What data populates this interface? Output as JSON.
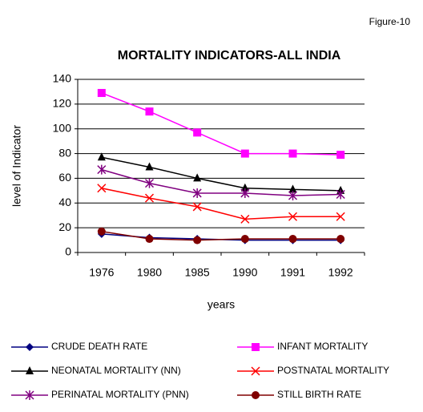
{
  "chart_data": {
    "type": "line",
    "figure_label": "Figure-10",
    "title": "MORTALITY INDICATORS-ALL INDIA",
    "x_label": "years",
    "y_label": "level of Indicator",
    "categories": [
      "1976",
      "1980",
      "1985",
      "1990",
      "1991",
      "1992"
    ],
    "ylim": [
      0,
      140
    ],
    "yticks": [
      0,
      20,
      40,
      60,
      80,
      100,
      120,
      140
    ],
    "grid": true,
    "series": [
      {
        "name": "CRUDE  DEATH RATE",
        "color": "#000080",
        "marker": "diamond",
        "values": [
          15,
          12,
          11,
          10,
          10,
          10
        ]
      },
      {
        "name": "INFANT MORTALITY",
        "color": "#ff00ff",
        "marker": "square",
        "values": [
          129,
          114,
          97,
          80,
          80,
          79
        ]
      },
      {
        "name": "NEONATAL MORTALITY (NN)",
        "color": "#000000",
        "marker": "triangle",
        "values": [
          77,
          69,
          60,
          52,
          51,
          50
        ]
      },
      {
        "name": "POSTNATAL MORTALITY",
        "color": "#ff0000",
        "marker": "x",
        "values": [
          52,
          44,
          37,
          27,
          29,
          29
        ]
      },
      {
        "name": "PERINATAL MORTALITY (PNN)",
        "color": "#800080",
        "marker": "star",
        "values": [
          67,
          56,
          48,
          48,
          46,
          47
        ]
      },
      {
        "name": "STILL BIRTH RATE",
        "color": "#800000",
        "marker": "circle",
        "values": [
          17,
          11,
          10,
          11,
          11,
          11
        ]
      }
    ]
  }
}
